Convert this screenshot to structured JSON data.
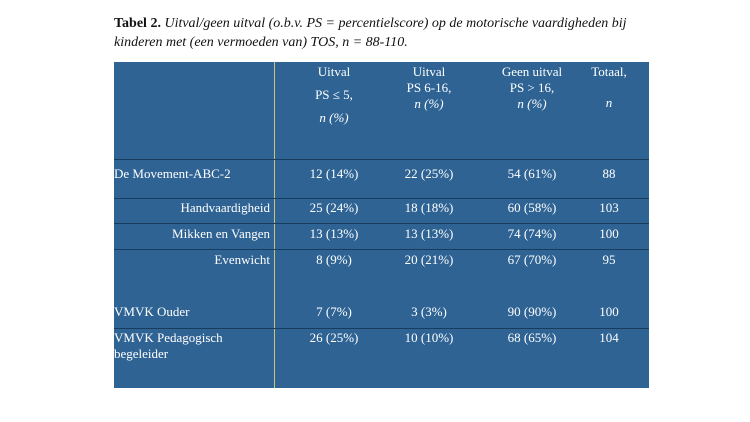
{
  "caption": {
    "label": "Tabel 2.",
    "text_line1": "Uitval/geen uitval (o.b.v. PS = percentielscore) op de motorische vaardigheden bij",
    "text_line2": "kinderen met (een vermoeden van) TOS, n = 88-110."
  },
  "table": {
    "headers": [
      {
        "line1": "Uitval",
        "line2": "PS ≤ 5,",
        "line3": "n (%)"
      },
      {
        "line1": "Uitval",
        "line2": "PS 6-16,",
        "line3": "n (%)"
      },
      {
        "line1": "Geen uitval",
        "line2": "PS > 16,",
        "line3": "n (%)"
      },
      {
        "line1": "Totaal,",
        "line2": "",
        "line3": "n"
      }
    ],
    "rows": [
      {
        "label": "De Movement-ABC-2",
        "values": [
          "12 (14%)",
          "22 (25%)",
          "54 (61%)",
          "88"
        ]
      },
      {
        "label": "Handvaardigheid",
        "values": [
          "25 (24%)",
          "18 (18%)",
          "60 (58%)",
          "103"
        ]
      },
      {
        "label": "Mikken en Vangen",
        "values": [
          "13 (13%)",
          "13 (13%)",
          "74 (74%)",
          "100"
        ]
      },
      {
        "label": "Evenwicht",
        "values": [
          "8 (9%)",
          "20 (21%)",
          "67 (70%)",
          "95"
        ]
      },
      {
        "label": "VMVK Ouder",
        "values": [
          "7 (7%)",
          "3 (3%)",
          "90 (90%)",
          "100"
        ]
      },
      {
        "label_line1": "VMVK Pedagogisch",
        "label_line2": "begeleider",
        "values": [
          "26 (25%)",
          "10 (10%)",
          "68 (65%)",
          "104"
        ]
      }
    ]
  },
  "colors": {
    "table_bg": "#2e6393",
    "divider": "#c9c27a",
    "text_on_table": "#ffffff"
  }
}
